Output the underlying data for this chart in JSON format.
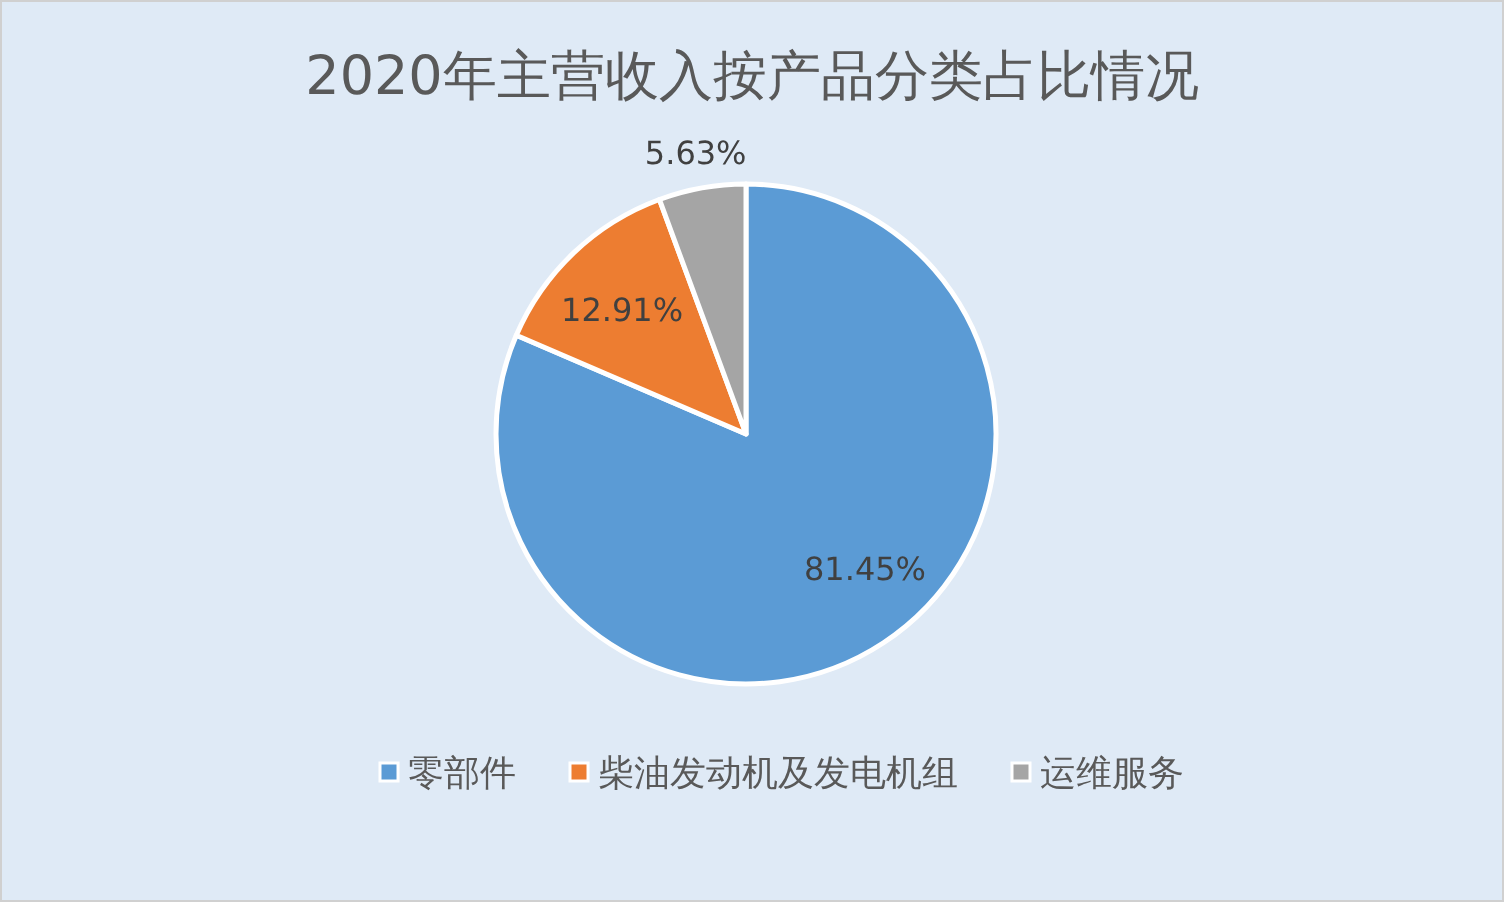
{
  "chart_data": {
    "type": "pie",
    "title": "2020年主营收入按产品分类占比情况",
    "categories": [
      "零部件",
      "柴油发动机及发电机组",
      "运维服务"
    ],
    "values": [
      81.45,
      12.91,
      5.63
    ],
    "colors": [
      "#5b9bd5",
      "#ed7d31",
      "#a5a5a5"
    ],
    "value_labels": [
      "81.45%",
      "12.91%",
      "5.63%"
    ],
    "legend": "bottom"
  }
}
